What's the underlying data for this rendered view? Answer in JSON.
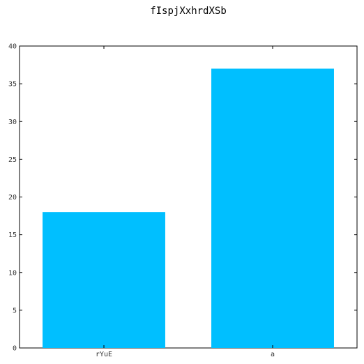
{
  "chart_data": {
    "type": "bar",
    "title": "fIspjXxhrdXSb",
    "xlabel": "",
    "ylabel": "",
    "categories": [
      "rYuE",
      "a"
    ],
    "values": [
      18,
      37
    ],
    "ylim": [
      0,
      40
    ],
    "yticks": [
      0,
      5,
      10,
      15,
      20,
      25,
      30,
      35,
      40
    ],
    "grid": false,
    "colors": {
      "bar": "#00bfff",
      "axis": "#000000"
    }
  }
}
